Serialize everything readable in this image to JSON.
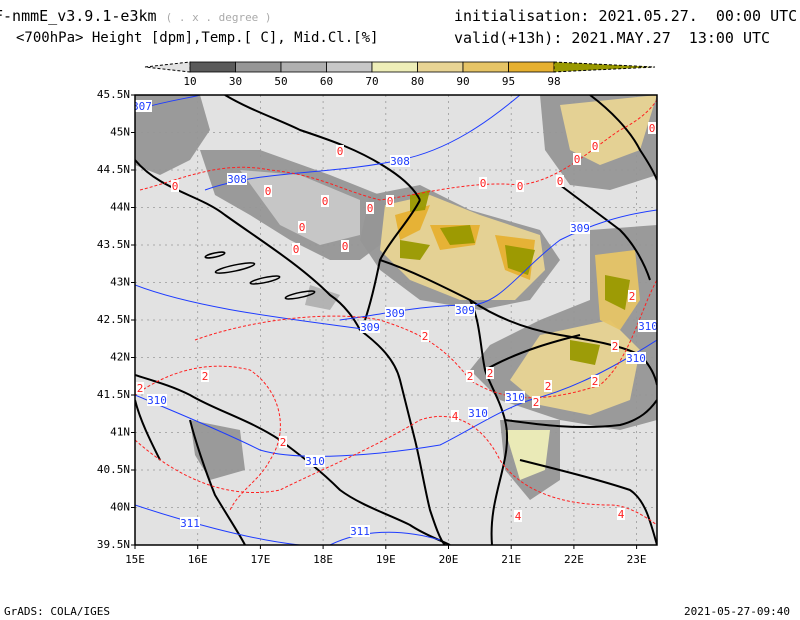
{
  "header": {
    "model": "F-nmmE_v3.9.1-e3km",
    "grid_note": "( . x . degree )",
    "fields": "<700hPa> Height [dpm],Temp.[ C], Mid.Cl.[%]",
    "initialisation": "initialisation: 2021.05.27.  00:00 UTC",
    "valid": "valid(+13h): 2021.MAY.27  13:00 UTC"
  },
  "colorbar": {
    "labels": [
      "10",
      "30",
      "50",
      "60",
      "70",
      "80",
      "90",
      "95",
      "98"
    ],
    "colors": [
      "#5a5a5a",
      "#969696",
      "#b0b0b0",
      "#c8c8c8",
      "#eeeeb8",
      "#e8d494",
      "#e6c466",
      "#e6b030"
    ],
    "under_color": "#e2e2e2",
    "over_color": "#999900"
  },
  "axes": {
    "lon_labels": [
      "15E",
      "16E",
      "17E",
      "18E",
      "19E",
      "20E",
      "21E",
      "22E",
      "23E"
    ],
    "lat_labels": [
      "45.5N",
      "45N",
      "44.5N",
      "44N",
      "43.5N",
      "43N",
      "42.5N",
      "42N",
      "41.5N",
      "41N",
      "40.5N",
      "40N",
      "39.5N"
    ]
  },
  "contours": {
    "height_labels": [
      "307",
      "308",
      "308",
      "309",
      "309",
      "309",
      "309",
      "310",
      "310",
      "310",
      "310",
      "310",
      "310",
      "311",
      "311"
    ],
    "temp_labels": [
      "0",
      "0",
      "0",
      "0",
      "0",
      "0",
      "0",
      "0",
      "0",
      "0",
      "0",
      "0",
      "0",
      "0",
      "0",
      "2",
      "2",
      "2",
      "2",
      "2",
      "2",
      "2",
      "2",
      "2",
      "2",
      "2",
      "4",
      "4",
      "4"
    ],
    "height_color": "#1e3cff",
    "temp_color": "#ff2020"
  },
  "footer": {
    "left": "GrADS: COLA/IGES",
    "right": "2021-05-27-09:40"
  }
}
